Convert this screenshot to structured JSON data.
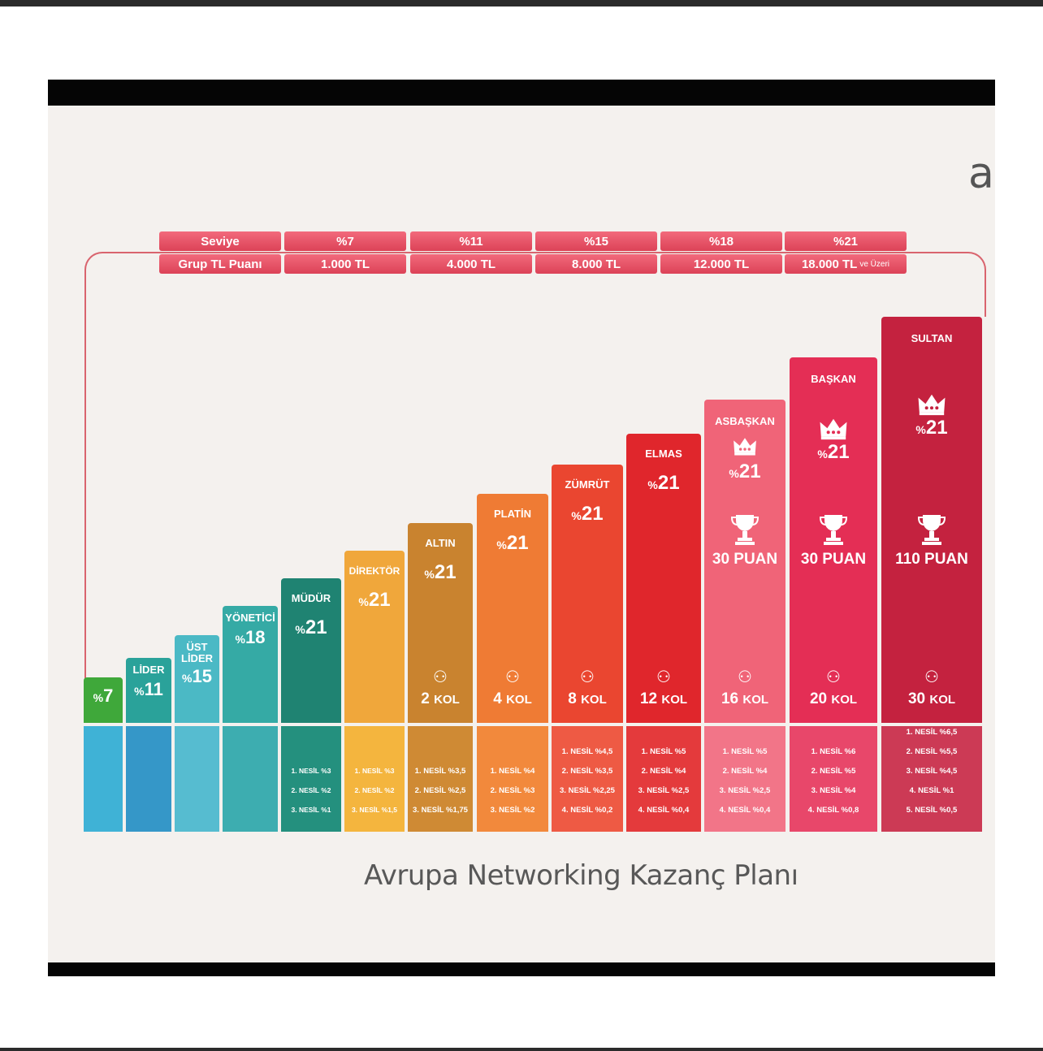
{
  "title": "Avrupa Networking Kazanç Planı",
  "level_table": {
    "row1_label": "Seviye",
    "row2_label": "Grup TL Puanı",
    "columns": [
      {
        "seviye": "%7",
        "puan": "1.000 TL",
        "suffix": ""
      },
      {
        "seviye": "%11",
        "puan": "4.000 TL",
        "suffix": ""
      },
      {
        "seviye": "%15",
        "puan": "8.000 TL",
        "suffix": ""
      },
      {
        "seviye": "%18",
        "puan": "12.000 TL",
        "suffix": ""
      },
      {
        "seviye": "%21",
        "puan": "18.000 TL",
        "suffix": "ve Üzeri"
      }
    ]
  },
  "chart_data": {
    "type": "bar",
    "title": "Avrupa Networking Kazanç Planı",
    "categories": [
      "",
      "LİDER",
      "ÜST LİDER",
      "YÖNETİCİ",
      "MÜDÜR",
      "DİREKTÖR",
      "ALTIN",
      "PLATİN",
      "ZÜMRÜT",
      "ELMAS",
      "ASBAŞKAN",
      "BAŞKAN",
      "SULTAN"
    ],
    "values": [
      7,
      11,
      15,
      18,
      21,
      21,
      21,
      21,
      21,
      21,
      21,
      21,
      21
    ],
    "bars": [
      {
        "name": "",
        "pct": "7",
        "kol": "",
        "puan": "",
        "crown": false,
        "color": "#3fa83a",
        "foot_color": "#3fb2d6",
        "nesil": []
      },
      {
        "name": "LİDER",
        "pct": "11",
        "kol": "",
        "puan": "",
        "crown": false,
        "color": "#2aa29a",
        "foot_color": "#3597c8",
        "nesil": []
      },
      {
        "name": "ÜST LİDER",
        "pct": "15",
        "kol": "",
        "puan": "",
        "crown": false,
        "color": "#4bb9c5",
        "foot_color": "#56bcd0",
        "nesil": []
      },
      {
        "name": "YÖNETİCİ",
        "pct": "18",
        "kol": "",
        "puan": "",
        "crown": false,
        "color": "#35aaa5",
        "foot_color": "#3dadb0",
        "nesil": []
      },
      {
        "name": "MÜDÜR",
        "pct": "21",
        "kol": "",
        "puan": "",
        "crown": false,
        "color": "#1f8372",
        "foot_color": "#24907e",
        "nesil": [
          "1. NESİL %3",
          "2. NESİL %2",
          "3. NESİL %1"
        ]
      },
      {
        "name": "DİREKTÖR",
        "pct": "21",
        "kol": "",
        "puan": "",
        "crown": false,
        "color": "#f0a73b",
        "foot_color": "#f4b53e",
        "nesil": [
          "1. NESİL %3",
          "2. NESİL %2",
          "3. NESİL %1,5"
        ]
      },
      {
        "name": "ALTIN",
        "pct": "21",
        "kol": "2 KOL",
        "puan": "",
        "crown": false,
        "color": "#c9832f",
        "foot_color": "#cf8a34",
        "nesil": [
          "1. NESİL %3,5",
          "2. NESİL %2,5",
          "3. NESİL %1,75"
        ]
      },
      {
        "name": "PLATİN",
        "pct": "21",
        "kol": "4 KOL",
        "puan": "",
        "crown": false,
        "color": "#ef7b34",
        "foot_color": "#f2893c",
        "nesil": [
          "1. NESİL %4",
          "2. NESİL %3",
          "3. NESİL %2"
        ]
      },
      {
        "name": "ZÜMRÜT",
        "pct": "21",
        "kol": "8 KOL",
        "puan": "",
        "crown": false,
        "color": "#ea4630",
        "foot_color": "#ee5a44",
        "nesil": [
          "1. NESİL %4,5",
          "2. NESİL %3,5",
          "3. NESİL %2,25",
          "4. NESİL %0,2"
        ]
      },
      {
        "name": "ELMAS",
        "pct": "21",
        "kol": "12 KOL",
        "puan": "",
        "crown": false,
        "color": "#e0262c",
        "foot_color": "#e43a3c",
        "nesil": [
          "1. NESİL %5",
          "2. NESİL %4",
          "3. NESİL %2,5",
          "4. NESİL %0,4"
        ]
      },
      {
        "name": "ASBAŞKAN",
        "pct": "21",
        "kol": "16 KOL",
        "puan": "30 PUAN",
        "crown": true,
        "color": "#f06478",
        "foot_color": "#f27588",
        "nesil": [
          "1. NESİL %5",
          "2. NESİL %4",
          "3. NESİL %2,5",
          "4. NESİL %0,4"
        ]
      },
      {
        "name": "BAŞKAN",
        "pct": "21",
        "kol": "20 KOL",
        "puan": "30 PUAN",
        "crown": true,
        "color": "#e42e55",
        "foot_color": "#e8476a",
        "nesil": [
          "1. NESİL %6",
          "2. NESİL %5",
          "3. NESİL %4",
          "4. NESİL %0,8"
        ]
      },
      {
        "name": "SULTAN",
        "pct": "21",
        "kol": "30 KOL",
        "puan": "110 PUAN",
        "crown": true,
        "color": "#c4223f",
        "foot_color": "#cc3a55",
        "nesil": [
          "1. NESİL %6,5",
          "2. NESİL %5,5",
          "3. NESİL %4,5",
          "4. NESİL %1",
          "5. NESİL %0,5"
        ]
      }
    ]
  }
}
